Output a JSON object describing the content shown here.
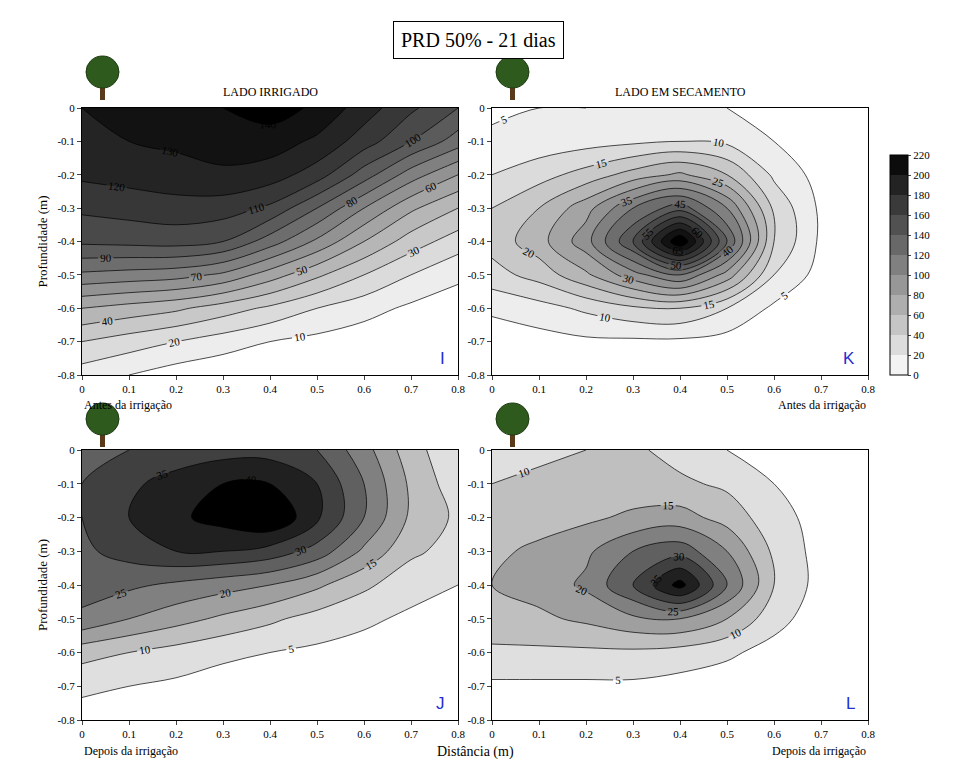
{
  "chart_data": {
    "type": "contour",
    "title": "PRD 50% - 21 dias",
    "column_titles": [
      "LADO IRRIGADO",
      "LADO EM SECAMENTO"
    ],
    "x_label": "Distância (m)",
    "y_label": "Profundidade (m)",
    "x": [
      0,
      0.1,
      0.2,
      0.3,
      0.4,
      0.5,
      0.6,
      0.7,
      0.8
    ],
    "y": [
      0,
      -0.1,
      -0.2,
      -0.3,
      -0.4,
      -0.5,
      -0.6,
      -0.7,
      -0.8
    ],
    "xlim": [
      0,
      0.8
    ],
    "ylim": [
      -0.8,
      0
    ],
    "xticks": [
      0,
      0.1,
      0.2,
      0.3,
      0.4,
      0.5,
      0.6,
      0.7,
      0.8
    ],
    "yticks": [
      -0.8,
      -0.7,
      -0.6,
      -0.5,
      -0.4,
      -0.3,
      -0.2,
      -0.1,
      0
    ],
    "colorbar": {
      "range": [
        0,
        220
      ],
      "ticks": [
        0,
        20,
        40,
        60,
        80,
        100,
        120,
        140,
        160,
        180,
        200,
        220
      ]
    },
    "panels": [
      {
        "letter": "I",
        "caption": "Antes da irrigação",
        "contour_levels": [
          10,
          20,
          30,
          40,
          50,
          60,
          70,
          80,
          90,
          100,
          110,
          120,
          130,
          140
        ],
        "z": [
          [
            130,
            132,
            135,
            140,
            145,
            138,
            125,
            112,
            100
          ],
          [
            128,
            130,
            132,
            135,
            135,
            128,
            115,
            100,
            85
          ],
          [
            122,
            124,
            126,
            128,
            125,
            115,
            95,
            75,
            60
          ],
          [
            112,
            114,
            116,
            115,
            108,
            90,
            70,
            52,
            40
          ],
          [
            102,
            103,
            104,
            100,
            85,
            68,
            50,
            35,
            25
          ],
          [
            78,
            76,
            74,
            68,
            55,
            42,
            30,
            20,
            12
          ],
          [
            50,
            46,
            42,
            35,
            28,
            20,
            14,
            8,
            5
          ],
          [
            30,
            25,
            20,
            15,
            10,
            7,
            4,
            2,
            1
          ],
          [
            15,
            10,
            5,
            2,
            1,
            0,
            0,
            0,
            0
          ]
        ]
      },
      {
        "letter": "K",
        "caption": "Antes da irrigação",
        "contour_levels": [
          5,
          10,
          15,
          20,
          25,
          30,
          35,
          40,
          45,
          50,
          55,
          60,
          65,
          70
        ],
        "z": [
          [
            4,
            5,
            5,
            6,
            6,
            5,
            3,
            2,
            1
          ],
          [
            6,
            7,
            8,
            9,
            10,
            9,
            5,
            2,
            1
          ],
          [
            10,
            13,
            17,
            22,
            26,
            20,
            9,
            3,
            1
          ],
          [
            15,
            20,
            28,
            40,
            48,
            35,
            14,
            4,
            1
          ],
          [
            17,
            23,
            33,
            50,
            75,
            45,
            15,
            4,
            1
          ],
          [
            13,
            17,
            24,
            33,
            40,
            28,
            10,
            3,
            1
          ],
          [
            6,
            8,
            11,
            14,
            15,
            10,
            4,
            2,
            1
          ],
          [
            2,
            3,
            4,
            4,
            4,
            3,
            2,
            1,
            0
          ],
          [
            1,
            1,
            1,
            1,
            1,
            1,
            1,
            0,
            0
          ]
        ]
      },
      {
        "letter": "J",
        "caption": "Depois da irrigação",
        "contour_levels": [
          5,
          10,
          15,
          20,
          25,
          30,
          35,
          40
        ],
        "z": [
          [
            28,
            30,
            32,
            33,
            33,
            30,
            22,
            12,
            6
          ],
          [
            30,
            34,
            37,
            40,
            40,
            35,
            25,
            14,
            7
          ],
          [
            30,
            35,
            39,
            42,
            45,
            36,
            25,
            14,
            9
          ],
          [
            29,
            32,
            35,
            35,
            33,
            28,
            19,
            11,
            8
          ],
          [
            27,
            26,
            24,
            22,
            20,
            16,
            11,
            7,
            5
          ],
          [
            24,
            20,
            17,
            14,
            11,
            8,
            6,
            4,
            3
          ],
          [
            12,
            10,
            8,
            6,
            5,
            4,
            3,
            2,
            2
          ],
          [
            6,
            5,
            4,
            3,
            2,
            2,
            1,
            1,
            1
          ],
          [
            3,
            2,
            1,
            1,
            1,
            1,
            0,
            0,
            0
          ]
        ]
      },
      {
        "letter": "L",
        "caption": "Depois da irrigação",
        "contour_levels": [
          5,
          10,
          15,
          20,
          25,
          30,
          35,
          40
        ],
        "z": [
          [
            8,
            9,
            10,
            11,
            8,
            5,
            3,
            2,
            1
          ],
          [
            10,
            11,
            12,
            12,
            11,
            9,
            5,
            2,
            1
          ],
          [
            12,
            13,
            14,
            16,
            17,
            13,
            7,
            3,
            1
          ],
          [
            14,
            16,
            19,
            25,
            28,
            20,
            9,
            3,
            1
          ],
          [
            15,
            17,
            21,
            30,
            42,
            25,
            10,
            3,
            1
          ],
          [
            13,
            14,
            16,
            19,
            20,
            15,
            7,
            2,
            1
          ],
          [
            9,
            9,
            9,
            9,
            8,
            6,
            3,
            1,
            0
          ],
          [
            4,
            4,
            4,
            4,
            3,
            2,
            1,
            0,
            0
          ],
          [
            1,
            1,
            1,
            1,
            1,
            1,
            0,
            0,
            0
          ]
        ]
      }
    ]
  }
}
